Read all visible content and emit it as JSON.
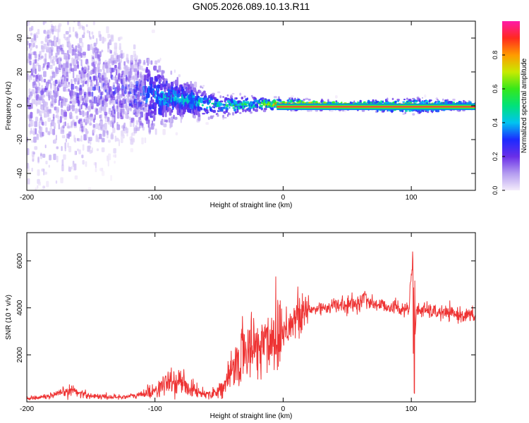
{
  "title": "GN05.2026.089.10.13.R11",
  "chart_data": [
    {
      "type": "heatmap",
      "xlabel": "Height of straight line (km)",
      "ylabel": "Frequency (Hz)",
      "xlim": [
        -200,
        150
      ],
      "ylim": [
        -50,
        50
      ],
      "x_ticks": [
        "-200",
        "-100",
        "0",
        "100"
      ],
      "y_ticks": [
        "40",
        "20",
        "0",
        "-20",
        "-40"
      ],
      "colorbar": {
        "label": "Normalized spectral amplitude",
        "range": [
          0,
          1
        ],
        "ticks": [
          "0.0",
          "0.2",
          "0.4",
          "0.6",
          "0.8"
        ]
      },
      "description_points": [
        {
          "x": -180,
          "center_freq": 10,
          "spread": 50,
          "amplitude": 0.2
        },
        {
          "x": -120,
          "center_freq": 8,
          "spread": 25,
          "amplitude": 0.3
        },
        {
          "x": -80,
          "center_freq": 4,
          "spread": 10,
          "amplitude": 0.45
        },
        {
          "x": -50,
          "center_freq": 0,
          "spread": 6,
          "amplitude": 0.5
        },
        {
          "x": -20,
          "center_freq": 1,
          "spread": 4,
          "amplitude": 0.6
        },
        {
          "x": 0,
          "center_freq": 1,
          "spread": 3,
          "amplitude": 0.9
        },
        {
          "x": 50,
          "center_freq": 0,
          "spread": 2,
          "amplitude": 1.0
        },
        {
          "x": 100,
          "center_freq": 0,
          "spread": 4,
          "amplitude": 0.8
        },
        {
          "x": 150,
          "center_freq": 0,
          "spread": 2,
          "amplitude": 0.7
        }
      ]
    },
    {
      "type": "line",
      "xlabel": "Height of straight line (km)",
      "ylabel": "SNR (10 * v/v)",
      "xlim": [
        -200,
        150
      ],
      "ylim": [
        0,
        7200
      ],
      "x_ticks": [
        "-200",
        "-100",
        "0",
        "100"
      ],
      "y_ticks": [
        "2000",
        "4000",
        "6000"
      ],
      "color": "#ee3333",
      "series": [
        {
          "name": "SNR",
          "x": [
            -200,
            -180,
            -165,
            -150,
            -130,
            -115,
            -100,
            -90,
            -80,
            -70,
            -62,
            -55,
            -45,
            -38,
            -30,
            -22,
            -15,
            -8,
            0,
            10,
            20,
            30,
            40,
            50,
            60,
            63,
            70,
            80,
            90,
            98,
            101,
            102,
            104,
            110,
            120,
            130,
            140,
            150
          ],
          "values": [
            150,
            250,
            500,
            250,
            200,
            250,
            500,
            800,
            850,
            500,
            350,
            350,
            700,
            1500,
            2200,
            2300,
            2500,
            2800,
            3100,
            3500,
            3900,
            4000,
            4100,
            4100,
            4200,
            4500,
            4150,
            4100,
            4000,
            3900,
            6000,
            2000,
            3900,
            3900,
            3800,
            3750,
            3700,
            3650
          ]
        }
      ]
    }
  ]
}
